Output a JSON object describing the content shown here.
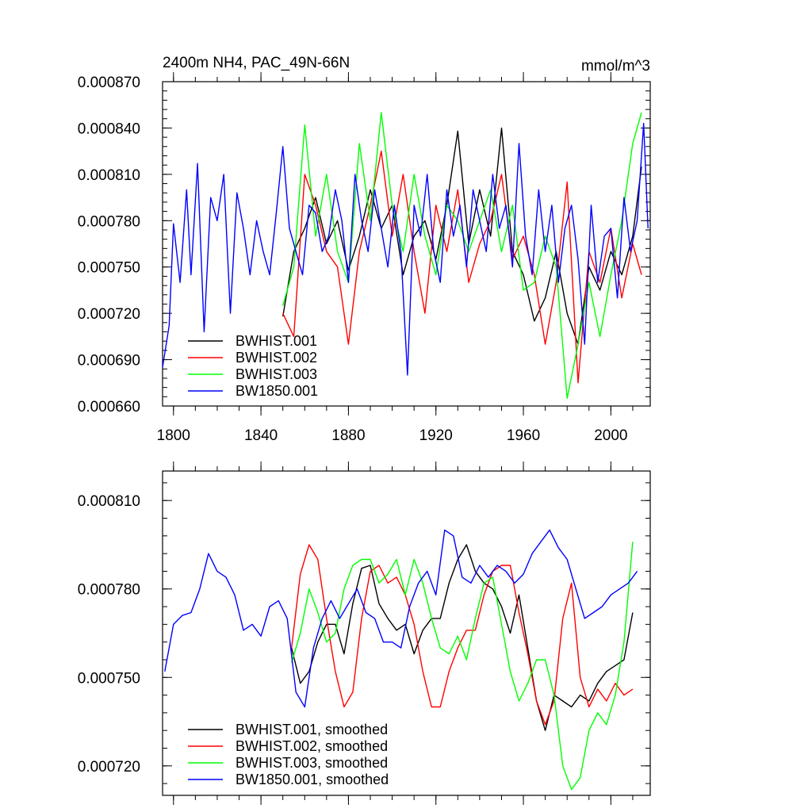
{
  "chart_data": [
    {
      "type": "line",
      "title_left": "2400m NH4, PAC_49N-66N",
      "title_right": "mmol/m^3",
      "xlabel": "",
      "ylabel": "",
      "xlim": [
        1795,
        2018
      ],
      "ylim": [
        0.00066,
        0.00087
      ],
      "xticks": [
        1800,
        1840,
        1880,
        1920,
        1960,
        2000
      ],
      "xtick_labels": [
        "1800",
        "1840",
        "1880",
        "1920",
        "1960",
        "2000"
      ],
      "yticks": [
        0.00066,
        0.00069,
        0.00072,
        0.00075,
        0.00078,
        0.00081,
        0.00084,
        0.00087
      ],
      "ytick_labels": [
        "0.000660",
        "0.000690",
        "0.000720",
        "0.000750",
        "0.000780",
        "0.000810",
        "0.000840",
        "0.000870"
      ],
      "legend_position": "bottom-left",
      "series": [
        {
          "name": "BWHIST.001",
          "color": "#000000",
          "x": [
            1850,
            1855,
            1860,
            1865,
            1870,
            1875,
            1880,
            1885,
            1890,
            1895,
            1900,
            1905,
            1910,
            1915,
            1920,
            1925,
            1930,
            1935,
            1940,
            1945,
            1950,
            1955,
            1960,
            1965,
            1970,
            1975,
            1980,
            1985,
            1990,
            1995,
            2000,
            2005,
            2010,
            2014
          ],
          "y": [
            0.000718,
            0.00076,
            0.000775,
            0.000795,
            0.000765,
            0.00078,
            0.000748,
            0.00077,
            0.0008,
            0.000775,
            0.00079,
            0.000745,
            0.00077,
            0.00078,
            0.000755,
            0.00079,
            0.000838,
            0.000765,
            0.0008,
            0.00077,
            0.00084,
            0.00076,
            0.000745,
            0.000715,
            0.00073,
            0.00076,
            0.00072,
            0.0007,
            0.00075,
            0.000735,
            0.00076,
            0.000745,
            0.00077,
            0.000815
          ]
        },
        {
          "name": "BWHIST.002",
          "color": "#ff0000",
          "x": [
            1850,
            1855,
            1860,
            1865,
            1870,
            1875,
            1880,
            1885,
            1890,
            1895,
            1900,
            1905,
            1910,
            1915,
            1920,
            1925,
            1930,
            1935,
            1940,
            1945,
            1950,
            1955,
            1960,
            1965,
            1970,
            1975,
            1980,
            1985,
            1990,
            1995,
            2000,
            2005,
            2010,
            2014
          ],
          "y": [
            0.00072,
            0.000705,
            0.00081,
            0.00079,
            0.00076,
            0.00075,
            0.0007,
            0.00076,
            0.00079,
            0.000825,
            0.00077,
            0.00081,
            0.00076,
            0.00072,
            0.00079,
            0.00076,
            0.0008,
            0.00074,
            0.000765,
            0.00078,
            0.00081,
            0.000755,
            0.00077,
            0.000745,
            0.0007,
            0.00074,
            0.000805,
            0.000675,
            0.00076,
            0.00074,
            0.000775,
            0.00073,
            0.000765,
            0.000745
          ]
        },
        {
          "name": "BWHIST.003",
          "color": "#00ff00",
          "x": [
            1850,
            1855,
            1860,
            1865,
            1870,
            1875,
            1880,
            1885,
            1890,
            1895,
            1900,
            1905,
            1910,
            1915,
            1920,
            1925,
            1930,
            1935,
            1940,
            1945,
            1950,
            1955,
            1960,
            1965,
            1970,
            1975,
            1980,
            1985,
            1990,
            1995,
            2000,
            2005,
            2010,
            2014
          ],
          "y": [
            0.000725,
            0.00075,
            0.000842,
            0.00077,
            0.00081,
            0.00076,
            0.00074,
            0.00083,
            0.00078,
            0.00085,
            0.00079,
            0.00076,
            0.00081,
            0.00077,
            0.000745,
            0.00079,
            0.00078,
            0.00076,
            0.00078,
            0.0008,
            0.00076,
            0.00079,
            0.000735,
            0.00074,
            0.00077,
            0.00075,
            0.000665,
            0.0007,
            0.00074,
            0.000705,
            0.000745,
            0.00078,
            0.00083,
            0.00085
          ]
        },
        {
          "name": "BW1850.001",
          "color": "#0000ff",
          "x": [
            1795,
            1798,
            1800,
            1803,
            1806,
            1808,
            1811,
            1814,
            1817,
            1820,
            1823,
            1826,
            1829,
            1832,
            1835,
            1838,
            1841,
            1844,
            1847,
            1850,
            1853,
            1856,
            1859,
            1862,
            1865,
            1868,
            1871,
            1874,
            1877,
            1880,
            1883,
            1886,
            1889,
            1892,
            1895,
            1898,
            1901,
            1904,
            1907,
            1910,
            1913,
            1916,
            1919,
            1922,
            1925,
            1928,
            1931,
            1934,
            1937,
            1940,
            1943,
            1946,
            1949,
            1952,
            1955,
            1958,
            1961,
            1964,
            1967,
            1970,
            1973,
            1976,
            1979,
            1982,
            1985,
            1988,
            1991,
            1994,
            1997,
            2000,
            2003,
            2006,
            2009,
            2012,
            2015,
            2017
          ],
          "y": [
            0.000685,
            0.000712,
            0.000778,
            0.00074,
            0.0008,
            0.000745,
            0.000817,
            0.000708,
            0.000795,
            0.00078,
            0.00081,
            0.00072,
            0.000798,
            0.000775,
            0.000745,
            0.00078,
            0.00076,
            0.000745,
            0.000785,
            0.000828,
            0.000775,
            0.00076,
            0.000745,
            0.00079,
            0.000785,
            0.00076,
            0.00077,
            0.0008,
            0.00078,
            0.00074,
            0.00081,
            0.00078,
            0.00076,
            0.0008,
            0.000775,
            0.00075,
            0.00079,
            0.00076,
            0.00068,
            0.00079,
            0.00077,
            0.00081,
            0.00076,
            0.00074,
            0.0008,
            0.00077,
            0.00079,
            0.00075,
            0.0008,
            0.00078,
            0.00076,
            0.00081,
            0.000775,
            0.00079,
            0.00075,
            0.00083,
            0.00077,
            0.000745,
            0.0008,
            0.00076,
            0.00079,
            0.00074,
            0.000775,
            0.00079,
            0.000755,
            0.0007,
            0.00079,
            0.00074,
            0.00077,
            0.000775,
            0.00073,
            0.000795,
            0.00076,
            0.00078,
            0.000843,
            0.000775
          ]
        }
      ]
    },
    {
      "type": "line",
      "title_left": "",
      "title_right": "",
      "xlabel": "",
      "ylabel": "",
      "xlim": [
        1795,
        2018
      ],
      "ylim": [
        0.00071,
        0.00082
      ],
      "xticks": [
        1800,
        1840,
        1880,
        1920,
        1960,
        2000
      ],
      "xtick_labels": [],
      "yticks": [
        0.00072,
        0.00075,
        0.00078,
        0.00081
      ],
      "ytick_labels": [
        "0.000720",
        "0.000750",
        "0.000780",
        "0.000810"
      ],
      "legend_position": "bottom-left",
      "series": [
        {
          "name": "BWHIST.001, smoothed",
          "color": "#000000",
          "x": [
            1854,
            1858,
            1862,
            1866,
            1870,
            1874,
            1878,
            1882,
            1886,
            1890,
            1894,
            1898,
            1902,
            1906,
            1910,
            1914,
            1918,
            1922,
            1926,
            1930,
            1934,
            1938,
            1942,
            1946,
            1950,
            1954,
            1958,
            1962,
            1966,
            1970,
            1974,
            1978,
            1982,
            1986,
            1990,
            1994,
            1998,
            2002,
            2006,
            2010
          ],
          "y": [
            0.00076,
            0.000748,
            0.000752,
            0.000762,
            0.000768,
            0.000768,
            0.000758,
            0.000775,
            0.000787,
            0.000788,
            0.000775,
            0.00077,
            0.000766,
            0.000768,
            0.000758,
            0.000766,
            0.00077,
            0.00077,
            0.000782,
            0.00079,
            0.000795,
            0.000786,
            0.000782,
            0.00078,
            0.000774,
            0.000765,
            0.000778,
            0.00076,
            0.000742,
            0.000732,
            0.000744,
            0.000742,
            0.00074,
            0.000744,
            0.000742,
            0.000748,
            0.000752,
            0.000754,
            0.000756,
            0.000772
          ]
        },
        {
          "name": "BWHIST.002, smoothed",
          "color": "#ff0000",
          "x": [
            1854,
            1858,
            1862,
            1866,
            1870,
            1874,
            1878,
            1882,
            1886,
            1890,
            1894,
            1898,
            1902,
            1906,
            1910,
            1914,
            1918,
            1922,
            1926,
            1930,
            1934,
            1938,
            1942,
            1946,
            1950,
            1954,
            1958,
            1962,
            1966,
            1970,
            1974,
            1978,
            1982,
            1986,
            1990,
            1994,
            1998,
            2002,
            2006,
            2010
          ],
          "y": [
            0.00076,
            0.000785,
            0.000795,
            0.00079,
            0.00077,
            0.000752,
            0.00074,
            0.000745,
            0.00077,
            0.000786,
            0.000788,
            0.000782,
            0.000784,
            0.000778,
            0.000768,
            0.000752,
            0.00074,
            0.00074,
            0.000752,
            0.00076,
            0.000766,
            0.000766,
            0.000778,
            0.000786,
            0.000788,
            0.000788,
            0.000772,
            0.000758,
            0.000742,
            0.000734,
            0.000742,
            0.00077,
            0.000782,
            0.00075,
            0.00074,
            0.000746,
            0.000742,
            0.000748,
            0.000744,
            0.000746
          ]
        },
        {
          "name": "BWHIST.003, smoothed",
          "color": "#00ff00",
          "x": [
            1854,
            1858,
            1862,
            1866,
            1870,
            1874,
            1878,
            1882,
            1886,
            1890,
            1894,
            1898,
            1902,
            1906,
            1910,
            1914,
            1918,
            1922,
            1926,
            1930,
            1934,
            1938,
            1942,
            1946,
            1950,
            1954,
            1958,
            1962,
            1966,
            1970,
            1974,
            1978,
            1982,
            1986,
            1990,
            1994,
            1998,
            2002,
            2006,
            2010
          ],
          "y": [
            0.000755,
            0.000765,
            0.00078,
            0.000772,
            0.000762,
            0.000765,
            0.00078,
            0.000788,
            0.00079,
            0.00079,
            0.000782,
            0.000785,
            0.00079,
            0.000778,
            0.00079,
            0.000782,
            0.00077,
            0.00076,
            0.000758,
            0.000764,
            0.000756,
            0.00077,
            0.000782,
            0.000784,
            0.000768,
            0.000752,
            0.000742,
            0.000748,
            0.000756,
            0.000756,
            0.000744,
            0.00072,
            0.000712,
            0.000716,
            0.000732,
            0.000738,
            0.000734,
            0.000744,
            0.000762,
            0.000796
          ]
        },
        {
          "name": "BW1850.001, smoothed",
          "color": "#0000ff",
          "x": [
            1796,
            1800,
            1804,
            1808,
            1812,
            1816,
            1820,
            1824,
            1828,
            1832,
            1836,
            1840,
            1844,
            1848,
            1852,
            1856,
            1860,
            1864,
            1868,
            1872,
            1876,
            1880,
            1884,
            1888,
            1892,
            1896,
            1900,
            1904,
            1908,
            1912,
            1916,
            1920,
            1924,
            1928,
            1932,
            1936,
            1940,
            1944,
            1948,
            1952,
            1956,
            1960,
            1964,
            1968,
            1972,
            1976,
            1980,
            1984,
            1988,
            1992,
            1996,
            2000,
            2004,
            2008,
            2012
          ],
          "y": [
            0.000752,
            0.000768,
            0.000771,
            0.000772,
            0.00078,
            0.000792,
            0.000786,
            0.000784,
            0.000778,
            0.000766,
            0.000768,
            0.000764,
            0.000774,
            0.000776,
            0.00077,
            0.000745,
            0.00074,
            0.00076,
            0.00077,
            0.000776,
            0.00077,
            0.000775,
            0.00078,
            0.000772,
            0.00077,
            0.000762,
            0.000762,
            0.00076,
            0.000774,
            0.000782,
            0.000786,
            0.000778,
            0.0008,
            0.000798,
            0.000784,
            0.000782,
            0.000788,
            0.000784,
            0.000788,
            0.000786,
            0.000782,
            0.000785,
            0.000792,
            0.000796,
            0.0008,
            0.000794,
            0.00079,
            0.00078,
            0.00077,
            0.000772,
            0.000774,
            0.000778,
            0.00078,
            0.000782,
            0.000786
          ]
        }
      ]
    }
  ]
}
